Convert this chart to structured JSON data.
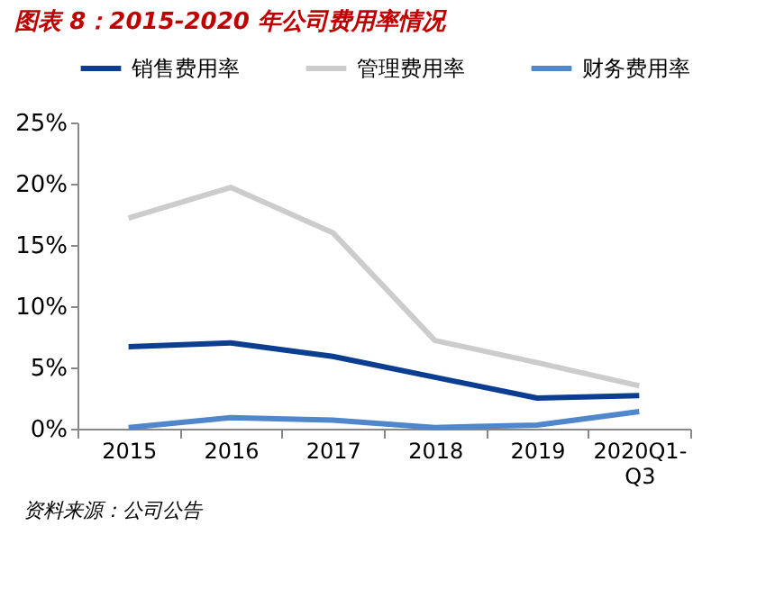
{
  "chart_data": {
    "type": "line",
    "title": "图表 8：2015-2020 年公司费用率情况",
    "categories": [
      "2015",
      "2016",
      "2017",
      "2018",
      "2019",
      "2020Q1-\nQ3"
    ],
    "series": [
      {
        "name": "销售费用率",
        "color": "#0b3d91",
        "values": [
          6.7,
          7.0,
          5.9,
          4.2,
          2.5,
          2.7
        ]
      },
      {
        "name": "管理费用率",
        "color": "#cccccc",
        "values": [
          17.2,
          19.7,
          16.0,
          7.2,
          5.4,
          3.5
        ]
      },
      {
        "name": "财务费用率",
        "color": "#4f86cc",
        "values": [
          0.1,
          0.9,
          0.7,
          0.1,
          0.3,
          1.4
        ]
      }
    ],
    "ylim": [
      0,
      25
    ],
    "yticks": [
      {
        "value": 0,
        "label": "0%"
      },
      {
        "value": 5,
        "label": "5%"
      },
      {
        "value": 10,
        "label": "10%"
      },
      {
        "value": 15,
        "label": "15%"
      },
      {
        "value": 20,
        "label": "20%"
      },
      {
        "value": 25,
        "label": "25%"
      }
    ],
    "legend": "top",
    "grid": false,
    "marker": "none",
    "line_style": "solid",
    "annotations": [
      "资料来源：公司公告"
    ]
  }
}
